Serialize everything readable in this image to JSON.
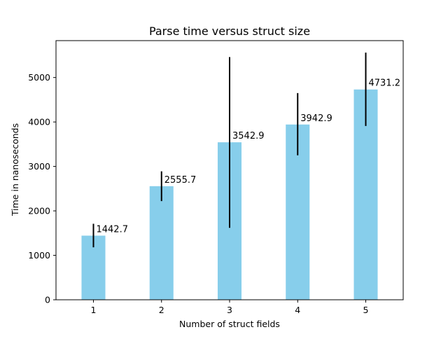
{
  "chart_data": {
    "type": "bar",
    "title": "Parse time versus struct size",
    "xlabel": "Number of struct fields",
    "ylabel": "Time in nanoseconds",
    "categories": [
      "1",
      "2",
      "3",
      "4",
      "5"
    ],
    "values": [
      1442.7,
      2555.7,
      3542.9,
      3942.9,
      4731.2
    ],
    "error_low": [
      1180,
      2220,
      1620,
      3250,
      3910
    ],
    "error_high": [
      1710,
      2890,
      5460,
      4650,
      5560
    ],
    "data_labels": [
      "1442.7",
      "2555.7",
      "3542.9",
      "3942.9",
      "4731.2"
    ],
    "ylim": [
      0,
      5830
    ],
    "yticks": [
      0,
      1000,
      2000,
      3000,
      4000,
      5000
    ],
    "ytick_labels": [
      "0",
      "1000",
      "2000",
      "3000",
      "4000",
      "5000"
    ],
    "grid": false,
    "colors": {
      "bar": "#87ceeb",
      "error_bar": "#000000",
      "axis": "#000000"
    }
  }
}
